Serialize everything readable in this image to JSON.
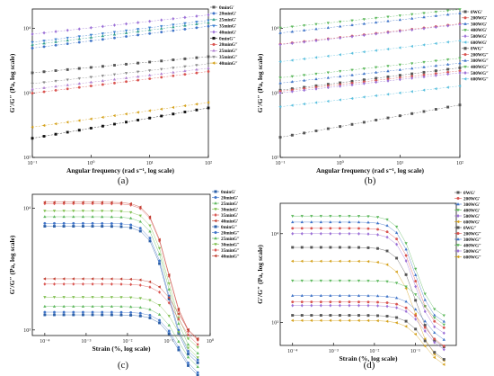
{
  "chart_data": [
    {
      "panel": "(a)",
      "type": "scatter",
      "x_scale": "log",
      "y_scale": "log",
      "xlabel": "Angular frequency (rad s⁻¹, log scale)",
      "ylabel": "G′/G″ (Pa, log scale)",
      "xlim": [
        0.1,
        100
      ],
      "ylim": [
        100,
        20000
      ],
      "x_ticks": [
        {
          "v": 0.1,
          "t": "10⁻¹"
        },
        {
          "v": 1,
          "t": "10⁰"
        },
        {
          "v": 10,
          "t": "10¹"
        },
        {
          "v": 100,
          "t": "10²"
        }
      ],
      "y_ticks": [
        {
          "v": 100,
          "t": "10²"
        },
        {
          "v": 1000,
          "t": "10³"
        },
        {
          "v": 10000,
          "t": "10⁴"
        }
      ],
      "legend_position": "top-right",
      "series": [
        {
          "name": "0minG′",
          "color": "#555555",
          "marker": "square",
          "y0": 2050,
          "y1": 3650
        },
        {
          "name": "20minG′",
          "color": "#3e73c8",
          "marker": "circle",
          "y0": 4950,
          "y1": 10800
        },
        {
          "name": "25minG′",
          "color": "#2e9e8c",
          "marker": "triangle-up",
          "y0": 5550,
          "y1": 12300
        },
        {
          "name": "35minG′",
          "color": "#3a7fd0",
          "marker": "triangle-down",
          "y0": 6100,
          "y1": 13300
        },
        {
          "name": "40minG′",
          "color": "#9b6fd6",
          "marker": "diamond",
          "y0": 8150,
          "y1": 16200
        },
        {
          "name": "0minG″",
          "color": "#111111",
          "marker": "square",
          "y0": 198,
          "y1": 585
        },
        {
          "name": "20minG″",
          "color": "#d9534f",
          "marker": "circle",
          "y0": 990,
          "y1": 2150
        },
        {
          "name": "25minG″",
          "color": "#b07fd0",
          "marker": "triangle-up",
          "y0": 1140,
          "y1": 2420
        },
        {
          "name": "35minG″",
          "color": "#8a8a8a",
          "marker": "triangle-down",
          "y0": 1390,
          "y1": 2820
        },
        {
          "name": "40minG″",
          "color": "#d4a017",
          "marker": "triangle-left",
          "y0": 295,
          "y1": 710
        }
      ]
    },
    {
      "panel": "(b)",
      "type": "scatter",
      "x_scale": "log",
      "y_scale": "log",
      "xlabel": "Angular frequency (rad s⁻¹, log scale)",
      "ylabel": "G′/G″ (Pa, log scale)",
      "xlim": [
        0.1,
        100
      ],
      "ylim": [
        100,
        20000
      ],
      "x_ticks": [
        {
          "v": 0.1,
          "t": "10⁻¹"
        },
        {
          "v": 1,
          "t": "10⁰"
        },
        {
          "v": 10,
          "t": "10¹"
        },
        {
          "v": 100,
          "t": "10²"
        }
      ],
      "y_ticks": [
        {
          "v": 100,
          "t": "10²"
        },
        {
          "v": 1000,
          "t": "10³"
        },
        {
          "v": 10000,
          "t": "10⁴"
        }
      ],
      "legend_position": "top-right",
      "series": [
        {
          "name": "0WG′",
          "color": "#555555",
          "marker": "square",
          "y0": 1100,
          "y1": 2450
        },
        {
          "name": "200WG′",
          "color": "#d9534f",
          "marker": "circle",
          "y0": 5700,
          "y1": 11800
        },
        {
          "name": "300WG′",
          "color": "#3e73c8",
          "marker": "triangle-up",
          "y0": 8500,
          "y1": 17200
        },
        {
          "name": "400WG′",
          "color": "#5cb85c",
          "marker": "triangle-down",
          "y0": 10200,
          "y1": 19700
        },
        {
          "name": "500WG′",
          "color": "#9b6fd6",
          "marker": "diamond",
          "y0": 5600,
          "y1": 11500
        },
        {
          "name": "600WG′",
          "color": "#5bc0de",
          "marker": "triangle-left",
          "y0": 3050,
          "y1": 6450
        },
        {
          "name": "0WG″",
          "color": "#555555",
          "marker": "square",
          "y0": 205,
          "y1": 650
        },
        {
          "name": "200WG″",
          "color": "#d9534f",
          "marker": "circle",
          "y0": 1060,
          "y1": 2200
        },
        {
          "name": "300WG″",
          "color": "#3e73c8",
          "marker": "triangle-up",
          "y0": 1420,
          "y1": 2900
        },
        {
          "name": "400WG″",
          "color": "#5cb85c",
          "marker": "triangle-down",
          "y0": 1720,
          "y1": 3450
        },
        {
          "name": "500WG″",
          "color": "#9b6fd6",
          "marker": "diamond",
          "y0": 1000,
          "y1": 2050
        },
        {
          "name": "600WG″",
          "color": "#5bc0de",
          "marker": "triangle-left",
          "y0": 610,
          "y1": 1280
        }
      ]
    },
    {
      "panel": "(c)",
      "type": "scatter",
      "x_scale": "log",
      "y_scale": "log",
      "xlabel": "Strain (%, log scale)",
      "ylabel": "G′/G″ (Pa, log scale)",
      "xlim": [
        5e-05,
        1.0
      ],
      "ylim": [
        900,
        13000
      ],
      "x_ticks": [
        {
          "v": 0.0001,
          "t": "10⁻⁴"
        },
        {
          "v": 0.001,
          "t": "10⁻³"
        },
        {
          "v": 0.01,
          "t": "10⁻²"
        },
        {
          "v": 0.1,
          "t": "10⁻¹"
        },
        {
          "v": 1,
          "t": "10⁰"
        }
      ],
      "y_ticks": [
        {
          "v": 1000,
          "t": "10³"
        },
        {
          "v": 10000,
          "t": "10⁴"
        }
      ],
      "legend_position": "top-right",
      "series": [
        {
          "name": "0minG′",
          "color": "#2b5fa8",
          "marker": "square",
          "plateau": 7100
        },
        {
          "name": "20minG′",
          "color": "#3e73c8",
          "marker": "circle",
          "plateau": 7500
        },
        {
          "name": "25minG′",
          "color": "#5cb85c",
          "marker": "triangle-up",
          "plateau": 8500
        },
        {
          "name": "30minG′",
          "color": "#7fbf4f",
          "marker": "triangle-down",
          "plateau": 9500
        },
        {
          "name": "35minG′",
          "color": "#d9534f",
          "marker": "diamond",
          "plateau": 10900
        },
        {
          "name": "40minG′",
          "color": "#c0392b",
          "marker": "triangle-left",
          "plateau": 11200
        },
        {
          "name": "0minG″",
          "color": "#2b5fa8",
          "marker": "square",
          "plateau": 1330
        },
        {
          "name": "20minG″",
          "color": "#3e73c8",
          "marker": "circle",
          "plateau": 1400
        },
        {
          "name": "25minG″",
          "color": "#5cb85c",
          "marker": "triangle-up",
          "plateau": 1560
        },
        {
          "name": "30minG″",
          "color": "#7fbf4f",
          "marker": "triangle-down",
          "plateau": 1860
        },
        {
          "name": "35minG″",
          "color": "#d9534f",
          "marker": "diamond",
          "plateau": 2380
        },
        {
          "name": "40minG″",
          "color": "#c0392b",
          "marker": "triangle-left",
          "plateau": 2630
        }
      ]
    },
    {
      "panel": "(d)",
      "type": "scatter",
      "x_scale": "log",
      "y_scale": "log",
      "xlabel": "Strain (%, log scale)",
      "ylabel": "G′/G″ (Pa, log scale)",
      "xlim": [
        5e-05,
        1.0
      ],
      "ylim": [
        550,
        22000
      ],
      "x_ticks": [
        {
          "v": 0.0001,
          "t": "10⁻⁴"
        },
        {
          "v": 0.001,
          "t": "10⁻³"
        },
        {
          "v": 0.01,
          "t": "10⁻²"
        },
        {
          "v": 0.1,
          "t": "10⁻¹"
        }
      ],
      "y_ticks": [
        {
          "v": 1000,
          "t": "10³"
        },
        {
          "v": 10000,
          "t": "10⁴"
        }
      ],
      "legend_position": "top-right",
      "series": [
        {
          "name": "0WG′",
          "color": "#555555",
          "marker": "square",
          "plateau": 7000
        },
        {
          "name": "200WG′",
          "color": "#d9534f",
          "marker": "circle",
          "plateau": 11500
        },
        {
          "name": "300WG′",
          "color": "#3e73c8",
          "marker": "triangle-up",
          "plateau": 13500
        },
        {
          "name": "400WG′",
          "color": "#5cb85c",
          "marker": "triangle-down",
          "plateau": 15800
        },
        {
          "name": "500WG′",
          "color": "#9b6fd6",
          "marker": "diamond",
          "plateau": 10000
        },
        {
          "name": "600WG′",
          "color": "#d4a017",
          "marker": "triangle-left",
          "plateau": 4900
        },
        {
          "name": "0WG″",
          "color": "#555555",
          "marker": "square",
          "plateau": 1200
        },
        {
          "name": "200WG″",
          "color": "#d9534f",
          "marker": "circle",
          "plateau": 1700
        },
        {
          "name": "300WG″",
          "color": "#3e73c8",
          "marker": "triangle-up",
          "plateau": 2000
        },
        {
          "name": "400WG″",
          "color": "#5cb85c",
          "marker": "triangle-down",
          "plateau": 2950
        },
        {
          "name": "500WG″",
          "color": "#9b6fd6",
          "marker": "diamond",
          "plateau": 1550
        },
        {
          "name": "600WG″",
          "color": "#d4a017",
          "marker": "triangle-left",
          "plateau": 1050
        }
      ]
    }
  ]
}
